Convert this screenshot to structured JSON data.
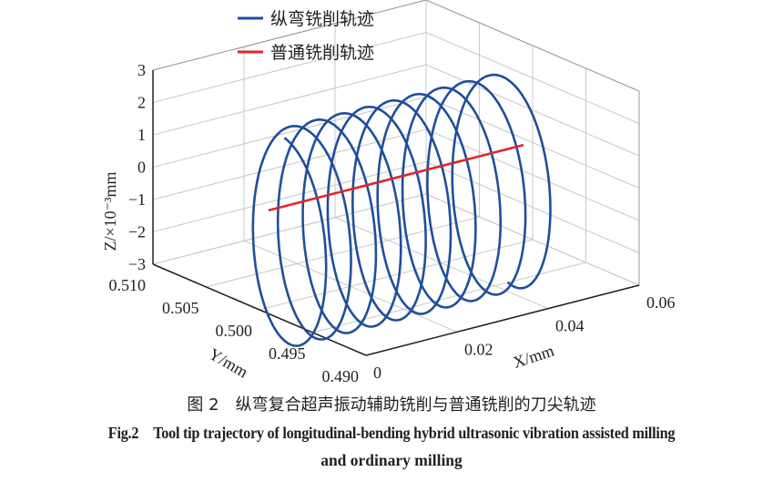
{
  "chart_data": {
    "type": "line",
    "projection": "3d",
    "grid": true,
    "legend_placement": "top-left",
    "xlabel": "X/mm",
    "ylabel": "Y/mm",
    "zlabel": "Z/×10⁻³mm",
    "xlim": [
      0,
      0.06
    ],
    "ylim": [
      0.49,
      0.51
    ],
    "zlim": [
      -3,
      3
    ],
    "x_ticks": [
      "0",
      "0.02",
      "0.04",
      "0.06"
    ],
    "y_ticks": [
      "0.490",
      "0.495",
      "0.500",
      "0.505",
      "0.510"
    ],
    "z_ticks": [
      "−3",
      "−2",
      "−1",
      "0",
      "1",
      "2",
      "3"
    ],
    "series": [
      {
        "name": "纵弯铣削轨迹",
        "color": "#1f4e9c",
        "shape": "helix",
        "x_range": [
          0.004,
          0.056
        ],
        "y_center": 0.5,
        "y_amplitude": 0.004,
        "z_center": -1.0,
        "z_amplitude": 3.3,
        "turns": 9.5
      },
      {
        "name": "普通铣削轨迹",
        "color": "#e0262b",
        "shape": "straight line",
        "x_range": [
          0.002,
          0.058
        ],
        "y": 0.5,
        "z": 0
      }
    ]
  },
  "caption": {
    "cn": "图 2　纵弯复合超声振动辅助铣削与普通铣削的刀尖轨迹",
    "en_line1": "Fig.2　Tool tip trajectory of longitudinal-bending hybrid ultrasonic vibration assisted milling",
    "en_line2": "and ordinary milling"
  }
}
